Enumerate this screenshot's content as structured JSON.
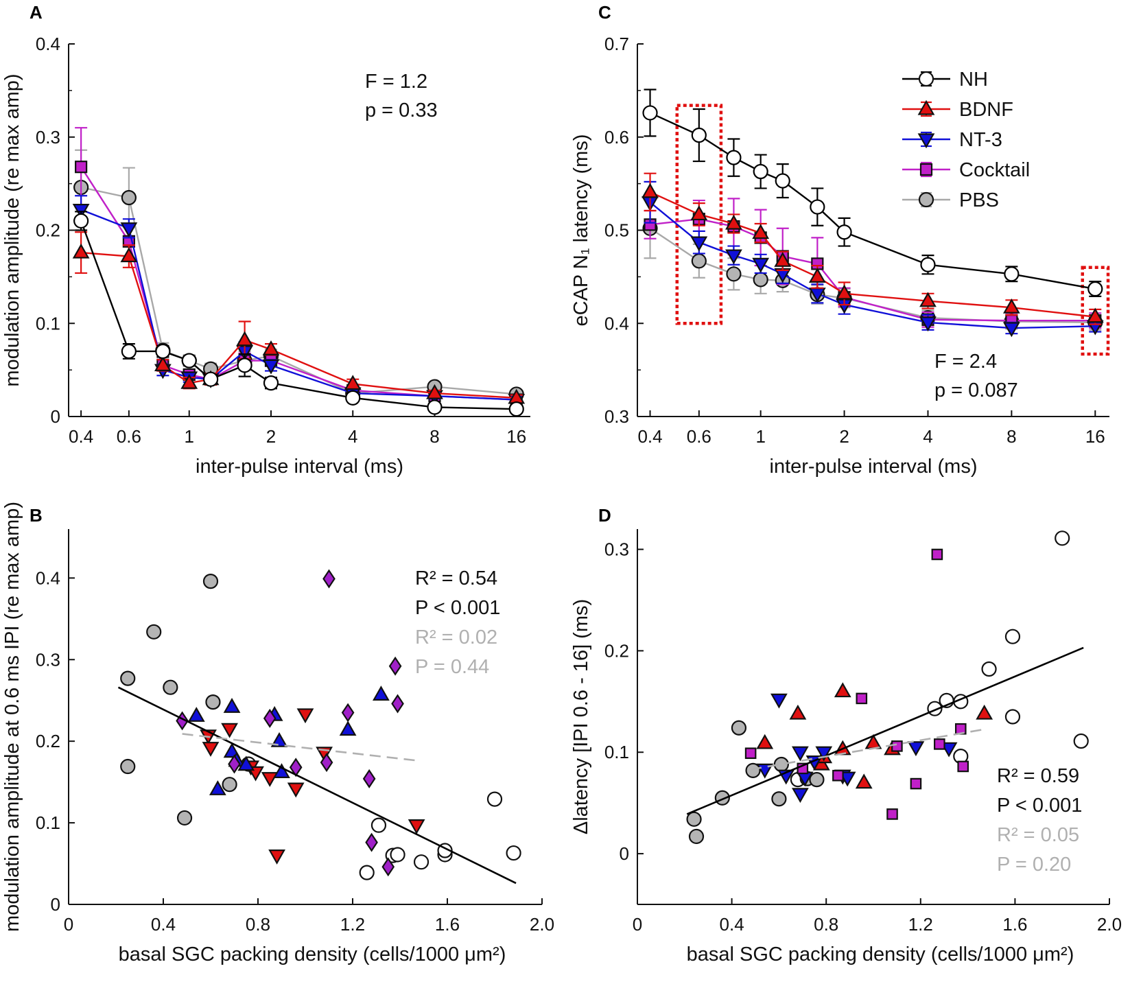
{
  "chart_data": [
    {
      "panel": "A",
      "type": "line",
      "xscale": "log",
      "xlabel": "inter-pulse interval (ms)",
      "ylabel": "modulation amplitude (re max amp)",
      "xlim": [
        0.36,
        18
      ],
      "ylim": [
        0,
        0.4
      ],
      "xticks": [
        0.4,
        0.6,
        1,
        2,
        4,
        8,
        16
      ],
      "xtick_labels": [
        "0.4",
        "0.6",
        "1",
        "2",
        "4",
        "8",
        "16"
      ],
      "yticks": [
        0,
        0.1,
        0.2,
        0.3,
        0.4
      ],
      "ytick_labels": [
        "0",
        "0.1",
        "0.2",
        "0.3",
        "0.4"
      ],
      "x": [
        0.4,
        0.6,
        0.8,
        1.0,
        1.2,
        1.6,
        2,
        4,
        8,
        16
      ],
      "annotation": [
        "F = 1.2",
        "p = 0.33"
      ],
      "series": [
        {
          "name": "NH",
          "color": "#000000",
          "marker": "circle",
          "fill": "#ffffff",
          "values": [
            0.21,
            0.07,
            0.07,
            0.06,
            0.04,
            0.055,
            0.036,
            0.02,
            0.01,
            0.008
          ],
          "errors": [
            0.01,
            0.008,
            0.006,
            0.005,
            0.005,
            0.012,
            0.006,
            0.003,
            0.003,
            0.002
          ]
        },
        {
          "name": "BDNF",
          "color": "#e01010",
          "marker": "triangle-up",
          "fill": "#e01010",
          "values": [
            0.176,
            0.172,
            0.055,
            0.036,
            0.04,
            0.082,
            0.072,
            0.035,
            0.025,
            0.02
          ],
          "errors": [
            0.022,
            0.012,
            0.006,
            0.006,
            0.006,
            0.02,
            0.006,
            0.005,
            0.003,
            0.003
          ]
        },
        {
          "name": "NT-3",
          "color": "#1010d8",
          "marker": "triangle-down",
          "fill": "#1010d8",
          "values": [
            0.222,
            0.202,
            0.05,
            0.042,
            0.04,
            0.07,
            0.055,
            0.025,
            0.022,
            0.018
          ],
          "errors": [
            0.015,
            0.01,
            0.006,
            0.005,
            0.005,
            0.01,
            0.006,
            0.003,
            0.003,
            0.003
          ]
        },
        {
          "name": "Cocktail",
          "color": "#c020c8",
          "marker": "square",
          "fill": "#c020c8",
          "values": [
            0.268,
            0.188,
            0.055,
            0.045,
            0.04,
            0.06,
            0.06,
            0.028,
            0.022,
            0.018
          ],
          "errors": [
            0.042,
            0.018,
            0.006,
            0.005,
            0.005,
            0.008,
            0.006,
            0.003,
            0.003,
            0.003
          ]
        },
        {
          "name": "PBS",
          "color": "#a8a8a8",
          "marker": "circle",
          "fill": "#b4b4b4",
          "values": [
            0.246,
            0.235,
            0.071,
            0.06,
            0.051,
            0.06,
            0.065,
            0.025,
            0.032,
            0.024
          ],
          "errors": [
            0.04,
            0.032,
            0.008,
            0.006,
            0.006,
            0.01,
            0.007,
            0.003,
            0.004,
            0.003
          ]
        }
      ]
    },
    {
      "panel": "C",
      "type": "line",
      "xscale": "log",
      "xlabel": "inter-pulse interval (ms)",
      "ylabel": "eCAP N₁ latency (ms)",
      "xlim": [
        0.36,
        18
      ],
      "ylim": [
        0.3,
        0.7
      ],
      "xticks": [
        0.4,
        0.6,
        1,
        2,
        4,
        8,
        16
      ],
      "xtick_labels": [
        "0.4",
        "0.6",
        "1",
        "2",
        "4",
        "8",
        "16"
      ],
      "yticks": [
        0.3,
        0.4,
        0.5,
        0.6,
        0.7
      ],
      "ytick_labels": [
        "0.3",
        "0.4",
        "0.5",
        "0.6",
        "0.7"
      ],
      "x": [
        0.4,
        0.6,
        0.8,
        1.0,
        1.2,
        1.6,
        2,
        4,
        8,
        16
      ],
      "annotation": [
        "F = 2.4",
        "p = 0.087"
      ],
      "legend": "top-right",
      "highlight_boxes": [
        {
          "x_range": [
            0.5,
            0.72
          ],
          "y_range": [
            0.4,
            0.634
          ]
        },
        {
          "x_range": [
            14.4,
            17.8
          ],
          "y_range": [
            0.367,
            0.46
          ]
        }
      ],
      "series": [
        {
          "name": "NH",
          "color": "#000000",
          "marker": "circle",
          "fill": "#ffffff",
          "values": [
            0.626,
            0.602,
            0.578,
            0.563,
            0.553,
            0.525,
            0.498,
            0.463,
            0.453,
            0.437
          ],
          "errors": [
            0.025,
            0.028,
            0.02,
            0.018,
            0.018,
            0.02,
            0.015,
            0.01,
            0.008,
            0.008
          ]
        },
        {
          "name": "BDNF",
          "color": "#e01010",
          "marker": "triangle-up",
          "fill": "#e01010",
          "values": [
            0.541,
            0.517,
            0.507,
            0.497,
            0.467,
            0.45,
            0.432,
            0.424,
            0.417,
            0.407
          ],
          "errors": [
            0.02,
            0.012,
            0.01,
            0.01,
            0.01,
            0.012,
            0.012,
            0.008,
            0.008,
            0.008
          ]
        },
        {
          "name": "NT-3",
          "color": "#1010d8",
          "marker": "triangle-down",
          "fill": "#1010d8",
          "values": [
            0.53,
            0.487,
            0.473,
            0.464,
            0.453,
            0.432,
            0.42,
            0.401,
            0.395,
            0.397
          ],
          "errors": [
            0.022,
            0.012,
            0.01,
            0.01,
            0.01,
            0.01,
            0.01,
            0.008,
            0.006,
            0.006
          ]
        },
        {
          "name": "Cocktail",
          "color": "#c020c8",
          "marker": "square",
          "fill": "#c020c8",
          "values": [
            0.506,
            0.512,
            0.504,
            0.492,
            0.472,
            0.464,
            0.428,
            0.404,
            0.403,
            0.403
          ],
          "errors": [
            0.015,
            0.02,
            0.03,
            0.03,
            0.03,
            0.028,
            0.01,
            0.008,
            0.008,
            0.008
          ]
        },
        {
          "name": "PBS",
          "color": "#a8a8a8",
          "marker": "circle",
          "fill": "#b4b4b4",
          "values": [
            0.502,
            0.467,
            0.453,
            0.447,
            0.446,
            0.431,
            0.427,
            0.406,
            0.402,
            0.401
          ],
          "errors": [
            0.032,
            0.018,
            0.017,
            0.015,
            0.012,
            0.01,
            0.01,
            0.008,
            0.008,
            0.008
          ]
        }
      ]
    },
    {
      "panel": "B",
      "type": "scatter",
      "xlabel": "basal SGC packing density (cells/1000 μm²)",
      "ylabel": "modulation amplitude at 0.6 ms IPI (re max amp)",
      "xlim": [
        0,
        2.0
      ],
      "ylim": [
        0,
        0.46
      ],
      "xticks": [
        0,
        0.4,
        0.8,
        1.2,
        1.6,
        2.0
      ],
      "xtick_labels": [
        "0",
        "0.4",
        "0.8",
        "1.2",
        "1.6",
        "2.0"
      ],
      "yticks": [
        0,
        0.1,
        0.2,
        0.3,
        0.4
      ],
      "ytick_labels": [
        "0",
        "0.1",
        "0.2",
        "0.3",
        "0.4"
      ],
      "fit_all": {
        "x": [
          0.21,
          1.89
        ],
        "y": [
          0.266,
          0.026
        ],
        "R2": "0.54",
        "P": "< 0.001"
      },
      "fit_deaf": {
        "x": [
          0.48,
          1.48
        ],
        "y": [
          0.209,
          0.176
        ],
        "R2": "0.02",
        "P": "0.44"
      },
      "stats_text": [
        "R² = 0.54",
        "P < 0.001",
        "R² = 0.02",
        "P = 0.44"
      ],
      "series": [
        {
          "name": "NH",
          "marker": "circle",
          "fill": "#ffffff",
          "points": [
            [
              1.26,
              0.039
            ],
            [
              1.31,
              0.097
            ],
            [
              1.37,
              0.06
            ],
            [
              1.39,
              0.061
            ],
            [
              1.49,
              0.052
            ],
            [
              1.59,
              0.061
            ],
            [
              1.59,
              0.066
            ],
            [
              1.8,
              0.129
            ],
            [
              1.88,
              0.063
            ],
            [
              0.76,
              0.172
            ]
          ]
        },
        {
          "name": "PBS",
          "marker": "circle",
          "fill": "#b4b4b4",
          "points": [
            [
              0.25,
              0.277
            ],
            [
              0.25,
              0.169
            ],
            [
              0.36,
              0.334
            ],
            [
              0.43,
              0.266
            ],
            [
              0.49,
              0.106
            ],
            [
              0.6,
              0.396
            ],
            [
              0.61,
              0.248
            ],
            [
              0.68,
              0.147
            ]
          ]
        },
        {
          "name": "BDNF",
          "marker": "triangle-down",
          "fill": "#e01010",
          "points": [
            [
              0.59,
              0.207
            ],
            [
              0.6,
              0.192
            ],
            [
              0.68,
              0.215
            ],
            [
              0.77,
              0.169
            ],
            [
              0.79,
              0.162
            ],
            [
              0.85,
              0.155
            ],
            [
              0.88,
              0.06
            ],
            [
              0.96,
              0.142
            ],
            [
              1.0,
              0.233
            ],
            [
              1.08,
              0.186
            ],
            [
              1.47,
              0.097
            ]
          ]
        },
        {
          "name": "NT-3",
          "marker": "triangle-up",
          "fill": "#1010d8",
          "points": [
            [
              0.54,
              0.231
            ],
            [
              0.63,
              0.141
            ],
            [
              0.69,
              0.242
            ],
            [
              0.69,
              0.187
            ],
            [
              0.71,
              0.176
            ],
            [
              0.75,
              0.171
            ],
            [
              0.87,
              0.232
            ],
            [
              0.89,
              0.2
            ],
            [
              0.9,
              0.162
            ],
            [
              1.18,
              0.214
            ],
            [
              1.32,
              0.257
            ]
          ]
        },
        {
          "name": "Cocktail",
          "marker": "diamond",
          "fill": "#a020c8",
          "points": [
            [
              0.48,
              0.225
            ],
            [
              0.7,
              0.172
            ],
            [
              0.85,
              0.228
            ],
            [
              0.96,
              0.168
            ],
            [
              1.09,
              0.174
            ],
            [
              1.1,
              0.399
            ],
            [
              1.18,
              0.235
            ],
            [
              1.27,
              0.154
            ],
            [
              1.28,
              0.076
            ],
            [
              1.35,
              0.046
            ],
            [
              1.38,
              0.292
            ],
            [
              1.39,
              0.246
            ]
          ]
        }
      ]
    },
    {
      "panel": "D",
      "type": "scatter",
      "xlabel": "basal SGC packing density (cells/1000 μm²)",
      "ylabel": "Δlatency [IPI 0.6 - 16] (ms)",
      "xlim": [
        0,
        2.0
      ],
      "ylim": [
        -0.05,
        0.32
      ],
      "xticks": [
        0,
        0.4,
        0.8,
        1.2,
        1.6,
        2.0
      ],
      "xtick_labels": [
        "0",
        "0.4",
        "0.8",
        "1.2",
        "1.6",
        "2.0"
      ],
      "yticks": [
        0,
        0.1,
        0.2,
        0.3
      ],
      "ytick_labels": [
        "0",
        "0.1",
        "0.2",
        "0.3"
      ],
      "fit_all": {
        "x": [
          0.21,
          1.89
        ],
        "y": [
          0.039,
          0.203
        ],
        "R2": "0.59",
        "P": "< 0.001"
      },
      "fit_deaf": {
        "x": [
          0.48,
          1.48
        ],
        "y": [
          0.083,
          0.123
        ],
        "R2": "0.05",
        "P": "0.20"
      },
      "stats_text": [
        "R² = 0.59",
        "P < 0.001",
        "R² = 0.05",
        "P = 0.20"
      ],
      "series": [
        {
          "name": "NH",
          "marker": "circle",
          "fill": "#ffffff",
          "points": [
            [
              1.26,
              0.143
            ],
            [
              1.31,
              0.151
            ],
            [
              1.37,
              0.15
            ],
            [
              1.37,
              0.096
            ],
            [
              1.49,
              0.182
            ],
            [
              1.59,
              0.214
            ],
            [
              1.59,
              0.135
            ],
            [
              1.8,
              0.311
            ],
            [
              1.88,
              0.111
            ],
            [
              0.68,
              0.073
            ]
          ]
        },
        {
          "name": "PBS",
          "marker": "circle",
          "fill": "#b4b4b4",
          "points": [
            [
              0.24,
              0.034
            ],
            [
              0.25,
              0.017
            ],
            [
              0.36,
              0.055
            ],
            [
              0.43,
              0.124
            ],
            [
              0.49,
              0.082
            ],
            [
              0.6,
              0.054
            ],
            [
              0.61,
              0.088
            ],
            [
              0.72,
              0.074
            ],
            [
              0.76,
              0.073
            ]
          ]
        },
        {
          "name": "BDNF",
          "marker": "triangle-up",
          "fill": "#e01010",
          "points": [
            [
              0.54,
              0.109
            ],
            [
              0.68,
              0.138
            ],
            [
              0.78,
              0.088
            ],
            [
              0.79,
              0.095
            ],
            [
              0.87,
              0.16
            ],
            [
              0.87,
              0.103
            ],
            [
              0.96,
              0.07
            ],
            [
              1.0,
              0.109
            ],
            [
              1.08,
              0.103
            ],
            [
              1.47,
              0.138
            ]
          ]
        },
        {
          "name": "NT-3",
          "marker": "triangle-down",
          "fill": "#1010d8",
          "points": [
            [
              0.54,
              0.083
            ],
            [
              0.6,
              0.152
            ],
            [
              0.63,
              0.077
            ],
            [
              0.69,
              0.1
            ],
            [
              0.69,
              0.059
            ],
            [
              0.71,
              0.075
            ],
            [
              0.75,
              0.091
            ],
            [
              0.79,
              0.1
            ],
            [
              0.87,
              0.077
            ],
            [
              0.89,
              0.075
            ],
            [
              1.18,
              0.105
            ],
            [
              1.32,
              0.104
            ]
          ]
        },
        {
          "name": "Cocktail",
          "marker": "square",
          "fill": "#c020c8",
          "points": [
            [
              0.48,
              0.099
            ],
            [
              0.7,
              0.084
            ],
            [
              0.85,
              0.077
            ],
            [
              0.95,
              0.153
            ],
            [
              1.08,
              0.039
            ],
            [
              1.1,
              0.106
            ],
            [
              1.18,
              0.069
            ],
            [
              1.27,
              0.295
            ],
            [
              1.28,
              0.108
            ],
            [
              1.37,
              0.123
            ],
            [
              1.38,
              0.086
            ]
          ]
        }
      ]
    }
  ],
  "labels": {
    "A": "A",
    "B": "B",
    "C": "C",
    "D": "D"
  }
}
